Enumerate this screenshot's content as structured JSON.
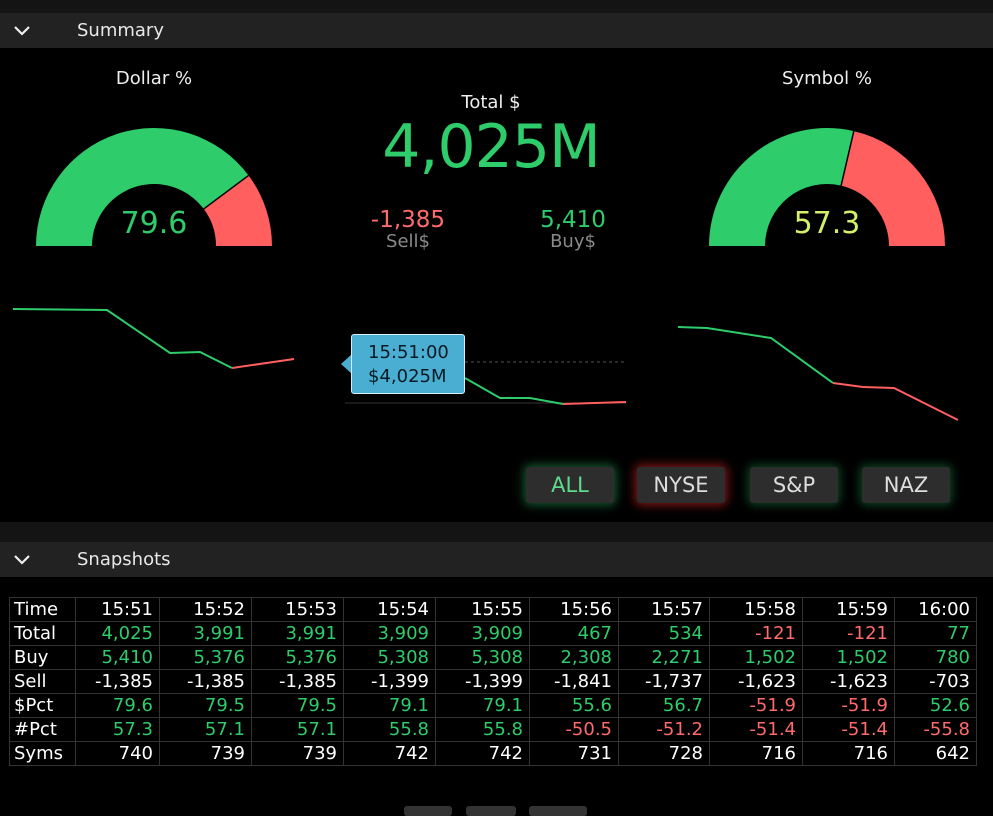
{
  "summary": {
    "title": "Summary"
  },
  "dollar_gauge": {
    "label": "Dollar %",
    "value": "79.6",
    "fraction": 0.796,
    "color_good": "#2ecc6a",
    "color_bad": "#ff5f5f"
  },
  "symbol_gauge": {
    "label": "Symbol %",
    "value": "57.3",
    "fraction": 0.573,
    "value_color": "#d4f06a"
  },
  "total": {
    "label": "Total $",
    "value": "4,025M"
  },
  "sell": {
    "value": "-1,385",
    "label": "Sell$"
  },
  "buy": {
    "value": "5,410",
    "label": "Buy$"
  },
  "tooltip": {
    "time": "15:51:00",
    "value": "$4,025M"
  },
  "markets": [
    {
      "label": "ALL"
    },
    {
      "label": "NYSE"
    },
    {
      "label": "S&P"
    },
    {
      "label": "NAZ"
    }
  ],
  "snapshots": {
    "title": "Snapshots",
    "times": [
      "15:51",
      "15:52",
      "15:53",
      "15:54",
      "15:55",
      "15:56",
      "15:57",
      "15:58",
      "15:59",
      "16:00"
    ],
    "rows": [
      {
        "label": "Time",
        "cells": [
          "15:51",
          "15:52",
          "15:53",
          "15:54",
          "15:55",
          "15:56",
          "15:57",
          "15:58",
          "15:59",
          "16:00"
        ],
        "signed": false
      },
      {
        "label": "Total",
        "cells": [
          "4,025",
          "3,991",
          "3,991",
          "3,909",
          "3,909",
          "467",
          "534",
          "-121",
          "-121",
          "77"
        ],
        "signed": true
      },
      {
        "label": "Buy",
        "cells": [
          "5,410",
          "5,376",
          "5,376",
          "5,308",
          "5,308",
          "2,308",
          "2,271",
          "1,502",
          "1,502",
          "780"
        ],
        "signed": true
      },
      {
        "label": "Sell",
        "cells": [
          "-1,385",
          "-1,385",
          "-1,385",
          "-1,399",
          "-1,399",
          "-1,841",
          "-1,737",
          "-1,623",
          "-1,623",
          "-703"
        ],
        "signed": false
      },
      {
        "label": "$Pct",
        "cells": [
          "79.6",
          "79.5",
          "79.5",
          "79.1",
          "79.1",
          "55.6",
          "56.7",
          "-51.9",
          "-51.9",
          "52.6"
        ],
        "signed": true
      },
      {
        "label": "#Pct",
        "cells": [
          "57.3",
          "57.1",
          "57.1",
          "55.8",
          "55.8",
          "-50.5",
          "-51.2",
          "-51.4",
          "-51.4",
          "-55.8"
        ],
        "signed": true
      },
      {
        "label": "Syms",
        "cells": [
          "740",
          "739",
          "739",
          "742",
          "742",
          "731",
          "728",
          "716",
          "716",
          "642"
        ],
        "signed": false
      }
    ]
  },
  "colors": {
    "positive": "#2ecc6a",
    "negative": "#ff6b6b",
    "accent_tooltip": "#4aaed2"
  }
}
